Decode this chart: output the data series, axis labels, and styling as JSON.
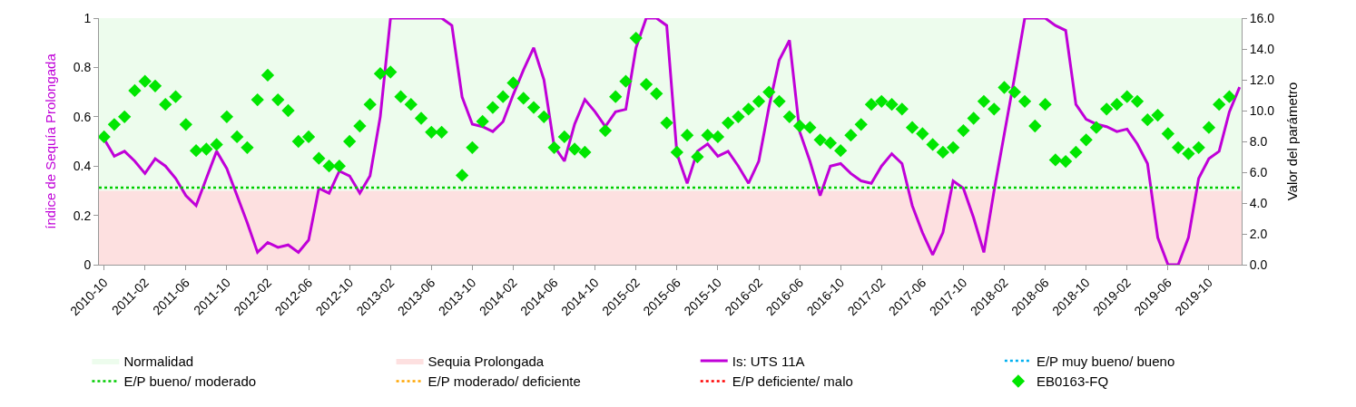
{
  "chart_data": {
    "type": "line",
    "categories": [
      "2010-10",
      null,
      null,
      null,
      "2011-02",
      null,
      null,
      null,
      "2011-06",
      null,
      null,
      null,
      "2011-10",
      null,
      null,
      null,
      "2012-02",
      null,
      null,
      null,
      "2012-06",
      null,
      null,
      null,
      "2012-10",
      null,
      null,
      null,
      "2013-02",
      null,
      null,
      null,
      "2013-06",
      null,
      null,
      null,
      "2013-10",
      null,
      null,
      null,
      "2014-02",
      null,
      null,
      null,
      "2014-06",
      null,
      null,
      null,
      "2014-10",
      null,
      null,
      null,
      "2015-02",
      null,
      null,
      null,
      "2015-06",
      null,
      null,
      null,
      "2015-10",
      null,
      null,
      null,
      "2016-02",
      null,
      null,
      null,
      "2016-06",
      null,
      null,
      null,
      "2016-10",
      null,
      null,
      null,
      "2017-02",
      null,
      null,
      null,
      "2017-06",
      null,
      null,
      null,
      "2017-10",
      null,
      null,
      null,
      "2018-02",
      null,
      null,
      null,
      "2018-06",
      null,
      null,
      null,
      "2018-10",
      null,
      null,
      null,
      "2019-02",
      null,
      null,
      null,
      "2019-06",
      null,
      null,
      null,
      "2019-10",
      null,
      null,
      null
    ],
    "series": [
      {
        "name": "Is: UTS 11A",
        "color": "#c000d8",
        "values": [
          0.51,
          0.44,
          0.46,
          0.42,
          0.37,
          0.43,
          0.4,
          0.35,
          0.28,
          0.24,
          0.35,
          0.46,
          0.39,
          0.28,
          0.17,
          0.05,
          0.09,
          0.07,
          0.08,
          0.05,
          0.1,
          0.31,
          0.29,
          0.38,
          0.36,
          0.29,
          0.36,
          0.6,
          1.0,
          1.0,
          1.0,
          1.0,
          1.0,
          1.0,
          0.97,
          0.68,
          0.57,
          0.56,
          0.54,
          0.58,
          0.69,
          0.79,
          0.88,
          0.75,
          0.48,
          0.42,
          0.57,
          0.67,
          0.62,
          0.56,
          0.62,
          0.63,
          0.88,
          1.0,
          1.0,
          0.97,
          0.45,
          0.33,
          0.46,
          0.49,
          0.44,
          0.46,
          0.4,
          0.33,
          0.42,
          0.64,
          0.83,
          0.91,
          0.54,
          0.42,
          0.28,
          0.4,
          0.41,
          0.37,
          0.34,
          0.33,
          0.4,
          0.45,
          0.41,
          0.24,
          0.13,
          0.04,
          0.13,
          0.34,
          0.31,
          0.19,
          0.05,
          0.3,
          0.53,
          0.76,
          1.0,
          1.0,
          1.0,
          0.97,
          0.95,
          0.65,
          0.59,
          0.57,
          0.56,
          0.54,
          0.55,
          0.49,
          0.41,
          0.11,
          0,
          0,
          0.11,
          0.35,
          0.43,
          0.46,
          0.62,
          0.72
        ]
      },
      {
        "name": "EB0163-FQ",
        "type": "scatter",
        "marker": "diamond",
        "axis": "y2",
        "color": "#00e600",
        "values": [
          8.3,
          9.1,
          9.6,
          11.3,
          11.9,
          11.6,
          10.4,
          10.9,
          9.1,
          7.4,
          7.5,
          7.8,
          9.6,
          8.3,
          7.6,
          10.7,
          12.3,
          10.7,
          10.0,
          8.0,
          8.3,
          6.9,
          6.4,
          6.4,
          8.0,
          9.0,
          10.4,
          12.4,
          12.5,
          10.9,
          10.4,
          9.5,
          8.6,
          8.6,
          null,
          5.8,
          7.6,
          9.3,
          10.2,
          10.9,
          11.8,
          10.8,
          10.2,
          9.6,
          7.6,
          8.3,
          7.5,
          7.3,
          null,
          8.7,
          10.9,
          11.9,
          14.7,
          11.7,
          11.1,
          9.2,
          7.3,
          8.4,
          7.0,
          8.4,
          8.3,
          9.2,
          9.6,
          10.1,
          10.6,
          11.2,
          10.6,
          9.6,
          9.0,
          8.9,
          8.1,
          7.9,
          7.4,
          8.4,
          9.1,
          10.4,
          10.6,
          10.4,
          10.1,
          8.9,
          8.5,
          7.8,
          7.3,
          7.6,
          8.7,
          9.5,
          10.6,
          10.1,
          11.5,
          11.2,
          10.6,
          9.0,
          10.4,
          6.8,
          6.7,
          7.3,
          8.1,
          8.9,
          10.1,
          10.4,
          10.9,
          10.6,
          9.4,
          9.7,
          8.5,
          7.6,
          7.2,
          7.6,
          8.9,
          10.4,
          10.9,
          null
        ]
      }
    ],
    "ylabel": "índice de Sequía Prolongada",
    "y2label": "Valor del parámetro",
    "ylim": [
      0,
      1
    ],
    "yticks": [
      0,
      0.2,
      0.4,
      0.6,
      0.8,
      1
    ],
    "y2lim": [
      0,
      16
    ],
    "y2ticks": [
      {
        "value": 0,
        "label": "0.0"
      },
      {
        "value": 2,
        "label": "2.0"
      },
      {
        "value": 4,
        "label": "4.0"
      },
      {
        "value": 6,
        "label": "6.0"
      },
      {
        "value": 8,
        "label": "8.0"
      },
      {
        "value": 10,
        "label": "10.0"
      },
      {
        "value": 12,
        "label": "12.0"
      },
      {
        "value": 14,
        "label": "14.0"
      },
      {
        "value": 16,
        "label": "16.0"
      }
    ],
    "bands": [
      {
        "axis": "y",
        "from": 0.3,
        "to": 1,
        "label": "Normalidad",
        "color": "#edfced"
      },
      {
        "axis": "y",
        "from": 0,
        "to": 0.3,
        "label": "Sequia Prolongada",
        "color": "#fde0e0"
      }
    ],
    "ref_lines": [
      {
        "axis": "y2",
        "value": null,
        "label": "E/P muy bueno/ bueno",
        "color": "#00b0f0",
        "line_style": "dotted"
      },
      {
        "axis": "y2",
        "value": 5.0,
        "label": "E/P bueno/ moderado",
        "color": "#00cc00",
        "line_style": "dotted"
      },
      {
        "axis": "y2",
        "value": null,
        "label": "E/P moderado/ deficiente",
        "color": "#ffa500",
        "line_style": "dotted"
      },
      {
        "axis": "y2",
        "value": null,
        "label": "E/P deficiente/ malo",
        "color": "#ff0000",
        "line_style": "dotted"
      }
    ],
    "legend": "bottom"
  }
}
